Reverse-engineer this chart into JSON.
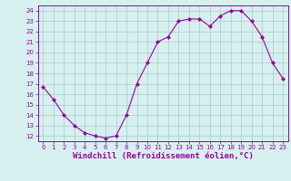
{
  "hours": [
    0,
    1,
    2,
    3,
    4,
    5,
    6,
    7,
    8,
    9,
    10,
    11,
    12,
    13,
    14,
    15,
    16,
    17,
    18,
    19,
    20,
    21,
    22,
    23
  ],
  "temps": [
    16.7,
    15.5,
    14.0,
    13.0,
    12.3,
    12.0,
    11.8,
    12.0,
    14.0,
    17.0,
    19.0,
    21.0,
    21.5,
    23.0,
    23.2,
    23.2,
    22.5,
    23.5,
    24.0,
    24.0,
    23.0,
    21.5,
    19.0,
    17.5
  ],
  "line_color": "#990099",
  "marker": "D",
  "marker_size": 2.0,
  "bg_color": "#d6f0f0",
  "grid_color": "#aacccc",
  "axis_color": "#990099",
  "xlabel": "Windchill (Refroidissement éolien,°C)",
  "ylim": [
    11.5,
    24.5
  ],
  "xlim": [
    -0.5,
    23.5
  ],
  "yticks": [
    12,
    13,
    14,
    15,
    16,
    17,
    18,
    19,
    20,
    21,
    22,
    23,
    24
  ],
  "xticks": [
    0,
    1,
    2,
    3,
    4,
    5,
    6,
    7,
    8,
    9,
    10,
    11,
    12,
    13,
    14,
    15,
    16,
    17,
    18,
    19,
    20,
    21,
    22,
    23
  ],
  "tick_fontsize": 5.0,
  "xlabel_fontsize": 6.5,
  "xlabel_bold": true
}
